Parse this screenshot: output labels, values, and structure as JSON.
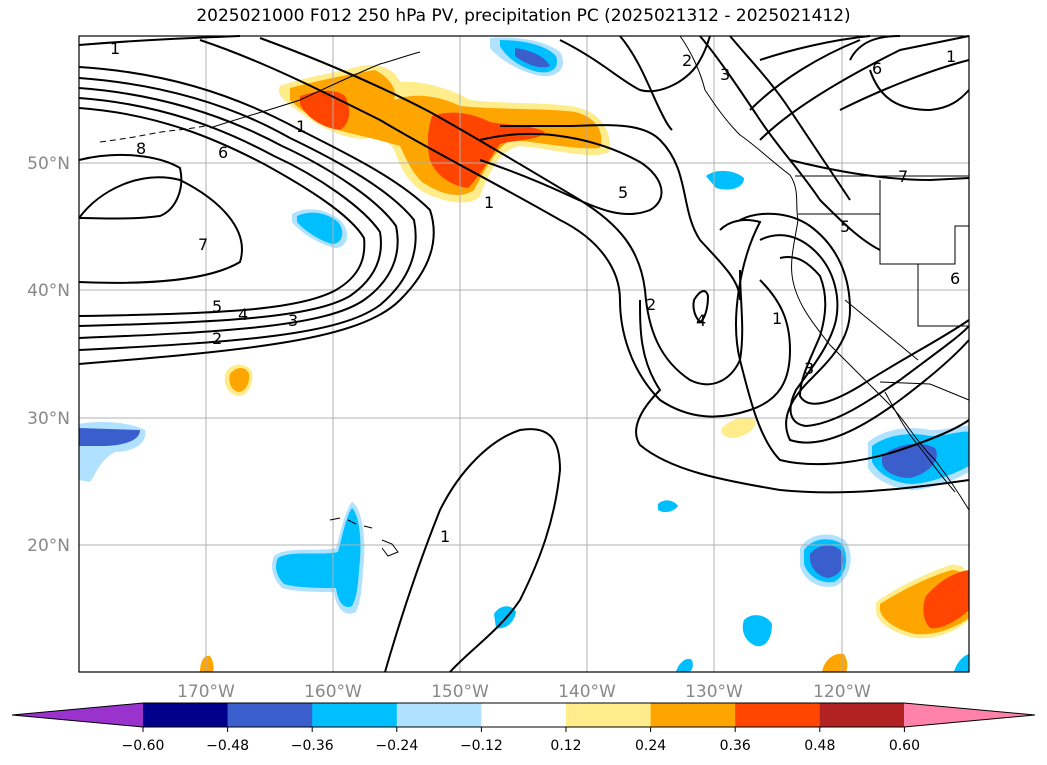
{
  "title": "2025021000 F012 250 hPa PV, precipitation PC (2025021312 - 2025021412)",
  "map": {
    "lon_labels": [
      "170°W",
      "160°W",
      "150°W",
      "140°W",
      "130°W",
      "120°W"
    ],
    "lat_labels": [
      "50°N",
      "40°N",
      "30°N",
      "20°N"
    ],
    "pv_contour_labels": [
      "1",
      "8",
      "6",
      "7",
      "5",
      "4",
      "3",
      "2",
      "1",
      "1",
      "5",
      "2",
      "4",
      "1",
      "3",
      "5",
      "7",
      "6",
      "6",
      "2",
      "3",
      "1",
      "1"
    ]
  },
  "colorbar": {
    "ticks": [
      "−0.60",
      "−0.48",
      "−0.36",
      "−0.24",
      "−0.12",
      "0.12",
      "0.24",
      "0.36",
      "0.48",
      "0.60"
    ],
    "colors": [
      "#9a32cd",
      "#00008b",
      "#3a5fcd",
      "#00bfff",
      "#b0e2ff",
      "#ffffff",
      "#ffec8b",
      "#ffa500",
      "#ff4500",
      "#b22222",
      "#ff82ab"
    ]
  },
  "colors": {
    "neg_dark": "#3a5fcd",
    "neg_mid": "#00bfff",
    "neg_light": "#b0e2ff",
    "pos_light": "#ffec8b",
    "pos_mid": "#ffa500",
    "pos_dark": "#ff4500",
    "grid": "#b0b0b0"
  }
}
